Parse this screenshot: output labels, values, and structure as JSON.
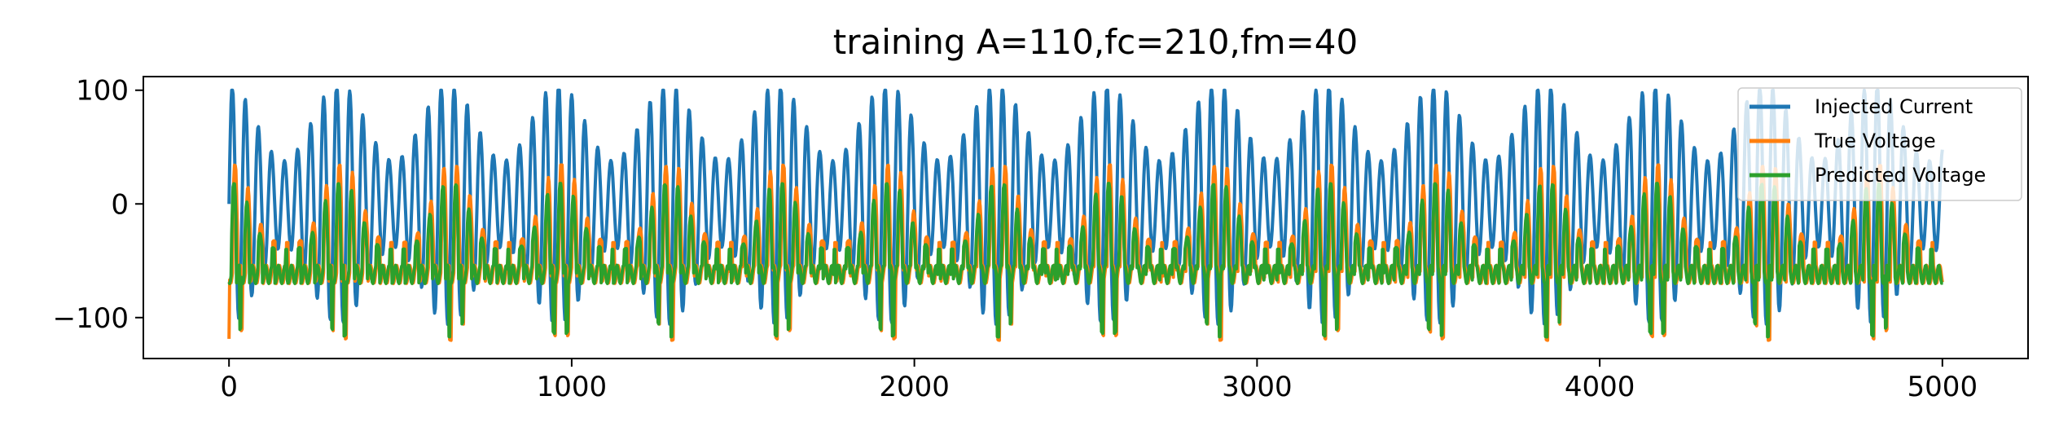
{
  "chart_data": {
    "type": "line",
    "title": "training A=110,fc=210,fm=40",
    "xlabel": "",
    "ylabel": "",
    "xlim": [
      -250,
      5250
    ],
    "ylim": [
      -136,
      112
    ],
    "xticks": [
      0,
      1000,
      2000,
      3000,
      4000,
      5000
    ],
    "xtick_labels": [
      "0",
      "1000",
      "2000",
      "3000",
      "4000",
      "5000"
    ],
    "yticks": [
      -100,
      0,
      100
    ],
    "ytick_labels": [
      "−100",
      "0",
      "100"
    ],
    "grid": false,
    "legend_position": "top-right",
    "series": [
      {
        "name": "Injected Current",
        "color": "#1f77b4",
        "description": "amplitude-modulated oscillation between about -110 and 100, repeating every ~320 samples",
        "x_range": [
          0,
          5000
        ],
        "y_min": -110,
        "y_max": 100
      },
      {
        "name": "True Voltage",
        "color": "#ff7f0e",
        "description": "spiking response mostly between -75 and -50 with peaks near 45 and dips near -125",
        "x_range": [
          0,
          5000
        ],
        "y_min": -125,
        "y_max": 47
      },
      {
        "name": "Predicted Voltage",
        "color": "#2ca02c",
        "description": "prediction closely following the true voltage",
        "x_range": [
          0,
          5000
        ],
        "y_min": -118,
        "y_max": 40
      }
    ]
  }
}
